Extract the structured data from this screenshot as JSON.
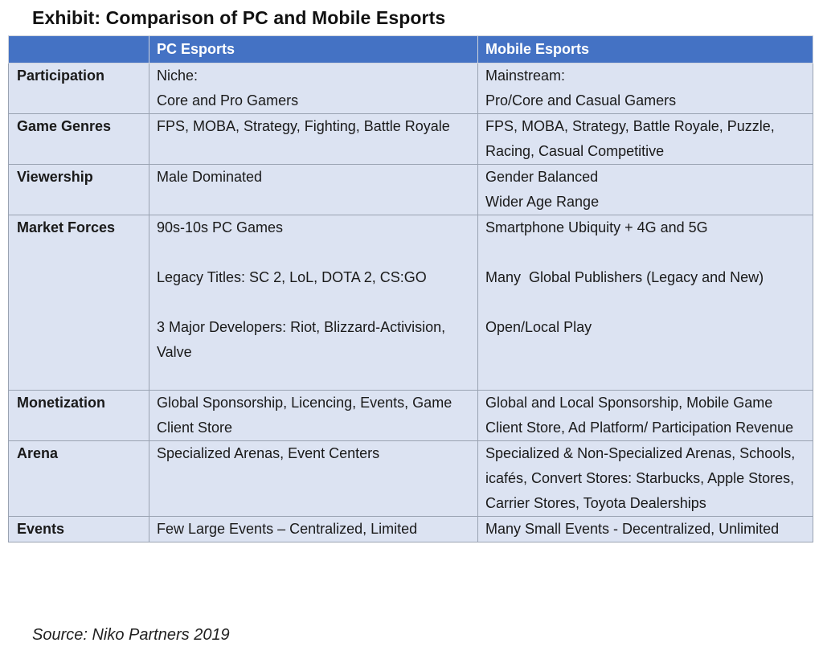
{
  "title": "Exhibit: Comparison of PC and Mobile Esports",
  "headers": [
    "",
    "PC Esports",
    "Mobile Esports"
  ],
  "rows": [
    {
      "label": "Participation",
      "pc": [
        "Niche:",
        "Core and Pro Gamers"
      ],
      "mobile": [
        "Mainstream:",
        "Pro/Core and Casual Gamers"
      ]
    },
    {
      "label": "Game Genres",
      "pc": [
        "FPS, MOBA, Strategy, Fighting, Battle Royale"
      ],
      "mobile": [
        "FPS, MOBA, Strategy, Battle Royale, Puzzle, Racing, Casual Competitive"
      ]
    },
    {
      "label": "Viewership",
      "pc": [
        "Male Dominated"
      ],
      "mobile": [
        "Gender Balanced",
        "Wider Age Range"
      ]
    },
    {
      "label": "Market Forces",
      "pc": [
        "90s-10s PC Games",
        "Legacy Titles: SC 2, LoL, DOTA 2, CS:GO",
        "3 Major Developers: Riot, Blizzard-Activision, Valve"
      ],
      "mobile": [
        "Smartphone Ubiquity + 4G and 5G",
        "Many  Global Publishers (Legacy and New)",
        "Open/Local Play"
      ]
    },
    {
      "label": "Monetization",
      "pc": [
        "Global Sponsorship, Licencing, Events, Game Client Store"
      ],
      "mobile": [
        "Global and Local Sponsorship, Mobile Game Client Store, Ad Platform/ Participation Revenue"
      ]
    },
    {
      "label": "Arena",
      "pc": [
        "Specialized Arenas, Event Centers"
      ],
      "mobile": [
        "Specialized & Non-Specialized Arenas, Schools, icafés, Convert Stores: Starbucks, Apple Stores, Carrier Stores, Toyota Dealerships"
      ]
    },
    {
      "label": "Events",
      "pc": [
        "Few Large Events – Centralized, Limited"
      ],
      "mobile": [
        "Many Small Events - Decentralized, Unlimited"
      ]
    }
  ],
  "source": "Source: Niko Partners 2019",
  "colors": {
    "header_bg": "#4472c4",
    "cell_bg": "#dce3f2",
    "border": "#9aa3b2"
  }
}
